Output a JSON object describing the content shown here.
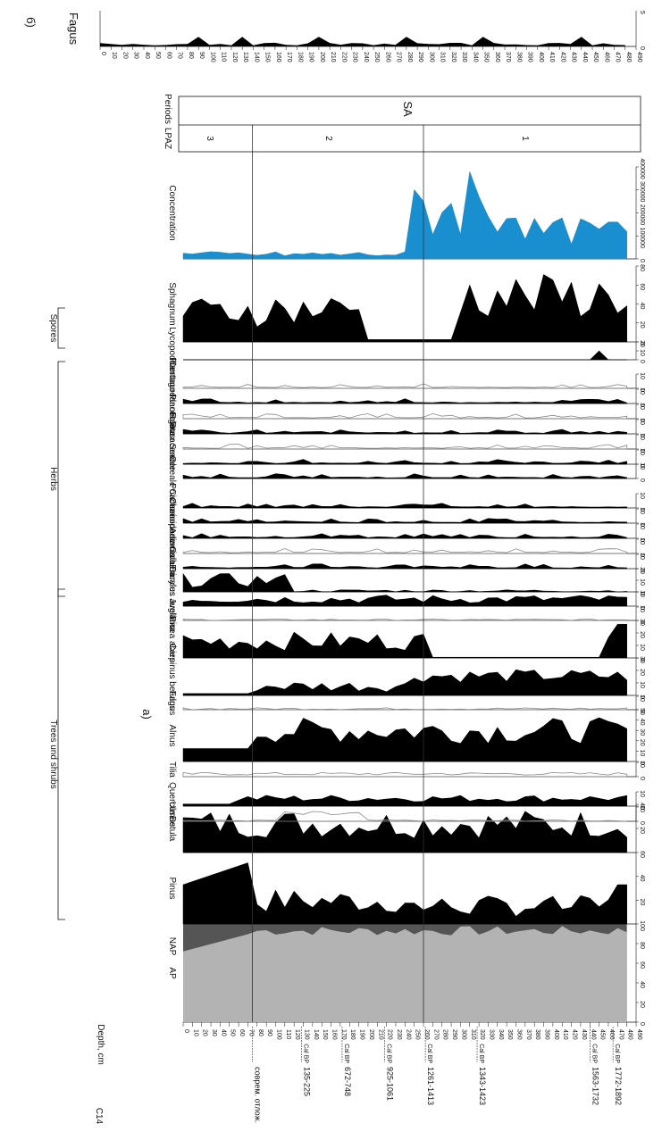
{
  "panel_a_letter": "а)",
  "panel_b_letter": "б)",
  "depth_title": "Depth, cm",
  "c14_title": "C",
  "c14_sub": "14",
  "cal_bp": "Cal BP",
  "dates": [
    {
      "label": "соврем. отлож.",
      "depth": 75,
      "cal": false
    },
    {
      "label": "135-225",
      "depth": 128,
      "cal": true
    },
    {
      "label": "672-748",
      "depth": 172,
      "cal": true
    },
    {
      "label": "925-1061",
      "depth": 218,
      "cal": true
    },
    {
      "label": "1261-1413",
      "depth": 262,
      "cal": true
    },
    {
      "label": "1343-1423",
      "depth": 318,
      "cal": true
    },
    {
      "label": "1563-1732",
      "depth": 440,
      "cal": true
    },
    {
      "label": "1772-1892",
      "depth": 465,
      "cal": true
    }
  ],
  "depth_ticks": [
    0,
    10,
    20,
    30,
    40,
    50,
    60,
    70,
    80,
    90,
    100,
    110,
    120,
    130,
    140,
    150,
    160,
    170,
    180,
    190,
    200,
    210,
    220,
    230,
    240,
    250,
    260,
    270,
    280,
    290,
    300,
    310,
    320,
    330,
    340,
    350,
    360,
    370,
    380,
    390,
    400,
    410,
    420,
    430,
    440,
    450,
    460,
    470,
    480,
    490
  ],
  "groups": {
    "trees": "Trees und shrubs",
    "herbs": "Herbs",
    "spores": "Spores"
  },
  "lpaz": {
    "title": "LPAZ",
    "zones": [
      "3",
      "2",
      "1"
    ],
    "periods_title": "Periods",
    "period": "SA"
  },
  "boundaries": [
    75,
    260
  ],
  "chart_data": {
    "type": "area",
    "orientation": "rotated-pollen-diagram",
    "y_axis": "depth",
    "depth_range": [
      0,
      490
    ],
    "taxa": [
      {
        "name": "AP",
        "type": "stacked",
        "max": 100,
        "ticks": [
          0,
          20,
          40,
          60,
          80,
          100
        ]
      },
      {
        "name": "NAP",
        "type": "stacked",
        "max": 100
      },
      {
        "name": "Pinus",
        "max": 60,
        "ticks": [
          20,
          40,
          60
        ]
      },
      {
        "name": "Betula",
        "max": 40,
        "ticks": [
          20,
          40
        ]
      },
      {
        "name": "Ulmus",
        "max": 10,
        "ticks": [
          0,
          10
        ]
      },
      {
        "name": "Quercus",
        "max": 10,
        "ticks": [
          0,
          10
        ]
      },
      {
        "name": "Tilia",
        "max": 10,
        "ticks": [
          0,
          10
        ]
      },
      {
        "name": "Alnus",
        "max": 50,
        "ticks": [
          0,
          10,
          20,
          30,
          40,
          50
        ]
      },
      {
        "name": "Fagus",
        "max": 10,
        "ticks": [
          0,
          10
        ]
      },
      {
        "name": "Carpinus betulus",
        "max": 30,
        "ticks": [
          0,
          10,
          20,
          30
        ]
      },
      {
        "name": "Picea abies",
        "max": 30,
        "ticks": [
          0,
          10,
          20,
          30
        ]
      },
      {
        "name": "Juglans",
        "max": 10,
        "ticks": [
          0,
          10
        ]
      },
      {
        "name": "Corylus avellana",
        "max": 10,
        "ticks": [
          0,
          10
        ]
      },
      {
        "name": "Ericales",
        "max": 20,
        "ticks": [
          0,
          10,
          20
        ]
      },
      {
        "name": "Calluna",
        "max": 10,
        "ticks": [
          0,
          10
        ]
      },
      {
        "name": "Artemisia",
        "max": 10,
        "ticks": [
          0,
          10
        ]
      },
      {
        "name": "Chenopodiaceae",
        "max": 10,
        "ticks": [
          0,
          10
        ]
      },
      {
        "name": "Cichorioideae",
        "max": 10,
        "ticks": [
          0,
          10
        ]
      },
      {
        "name": "Poaceae",
        "max": 10,
        "ticks": [
          0,
          10
        ]
      },
      {
        "name": "Cereale",
        "max": 10,
        "ticks": [
          0,
          10
        ]
      },
      {
        "name": "Secale",
        "max": 10,
        "ticks": [
          0,
          10
        ]
      },
      {
        "name": "Rosaceae",
        "max": 10,
        "ticks": [
          0,
          10
        ]
      },
      {
        "name": "Rumex",
        "max": 10,
        "ticks": [
          0,
          10
        ]
      },
      {
        "name": "Plantago",
        "max": 10,
        "ticks": [
          0,
          10
        ]
      },
      {
        "name": "Plantago lanceolata",
        "max": 10,
        "ticks": [
          0,
          10
        ]
      },
      {
        "name": "Centaurea",
        "max": 10,
        "ticks": [
          0,
          10
        ]
      },
      {
        "name": "Lycopodium",
        "max": 20,
        "ticks": [
          0,
          10,
          20
        ]
      },
      {
        "name": "Sphagnum",
        "max": 80,
        "ticks": [
          0,
          20,
          40,
          60,
          80
        ]
      },
      {
        "name": "Concentration",
        "max": 400000,
        "ticks": [
          0,
          100000,
          200000,
          300000,
          400000
        ],
        "color": "#1a8fd0"
      }
    ],
    "fagus_b": {
      "name": "Fagus",
      "max": 5,
      "ticks": [
        0,
        5
      ]
    }
  }
}
